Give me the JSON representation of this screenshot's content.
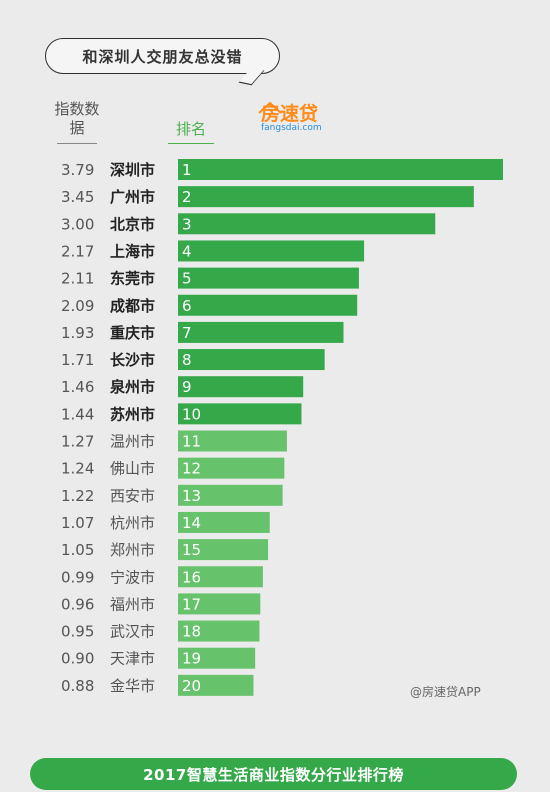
{
  "header": {
    "bubble_title": "和深圳人交朋友总没错",
    "index_label": "指数数据",
    "rank_label": "排名"
  },
  "logo": {
    "name": "房速贷",
    "subtitle": "fangsdai.com"
  },
  "watermark": "@房速贷APP",
  "footer": "2017智慧生活商业指数分行业排行榜",
  "colors": {
    "bar_dark": "#35a94a",
    "bar_light": "#67c26c",
    "accent_green": "#4caf50",
    "logo_orange": "#ff8c1a",
    "logo_blue": "#2a8fd6"
  },
  "chart_data": {
    "type": "bar",
    "orientation": "horizontal",
    "categories": [
      "深圳市",
      "广州市",
      "北京市",
      "上海市",
      "东莞市",
      "成都市",
      "重庆市",
      "长沙市",
      "泉州市",
      "苏州市",
      "温州市",
      "佛山市",
      "西安市",
      "杭州市",
      "郑州市",
      "宁波市",
      "福州市",
      "武汉市",
      "天津市",
      "金华市"
    ],
    "values": [
      3.79,
      3.45,
      3.0,
      2.17,
      2.11,
      2.09,
      1.93,
      1.71,
      1.46,
      1.44,
      1.27,
      1.24,
      1.22,
      1.07,
      1.05,
      0.99,
      0.96,
      0.95,
      0.9,
      0.88
    ],
    "value_labels": [
      "3.79",
      "3.45",
      "3.00",
      "2.17",
      "2.11",
      "2.09",
      "1.93",
      "1.71",
      "1.46",
      "1.44",
      "1.27",
      "1.24",
      "1.22",
      "1.07",
      "1.05",
      "0.99",
      "0.96",
      "0.95",
      "0.90",
      "0.88"
    ],
    "ranks": [
      "1",
      "2",
      "3",
      "4",
      "5",
      "6",
      "7",
      "8",
      "9",
      "10",
      "11",
      "12",
      "13",
      "14",
      "15",
      "16",
      "17",
      "18",
      "19",
      "20"
    ],
    "bold_count": 10,
    "xlim": [
      0,
      3.79
    ]
  }
}
